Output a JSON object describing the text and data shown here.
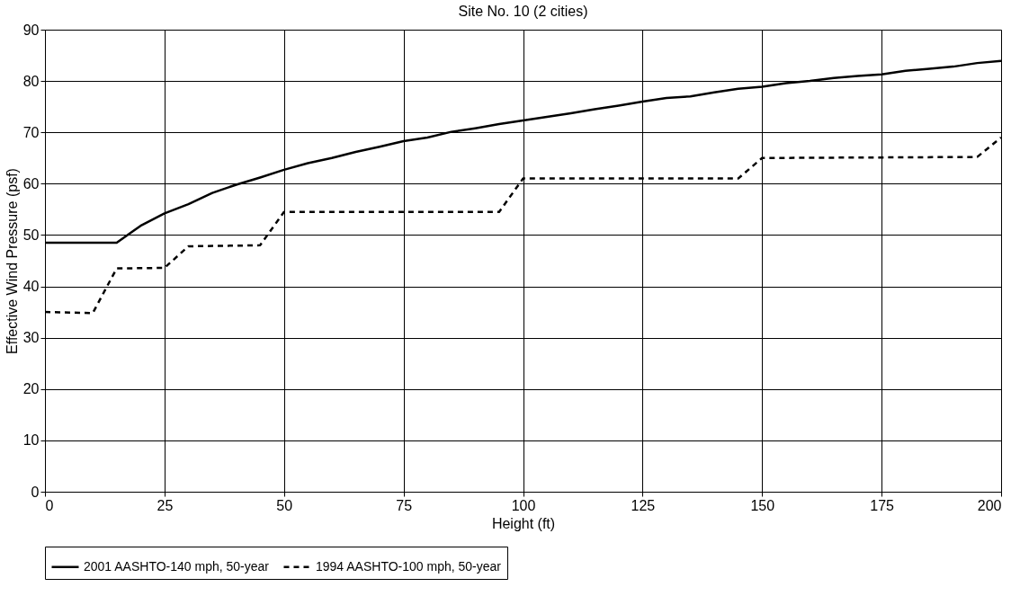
{
  "chart_data": {
    "type": "line",
    "title": "Site No. 10 (2 cities)",
    "xlabel": "Height (ft)",
    "ylabel": "Effective Wind Pressure (psf)",
    "xlim": [
      0,
      200
    ],
    "xticks": [
      0,
      25,
      50,
      75,
      100,
      125,
      150,
      175,
      200
    ],
    "ylim": [
      0,
      90
    ],
    "yticks": [
      0,
      10,
      20,
      30,
      40,
      50,
      60,
      70,
      80,
      90
    ],
    "grid": true,
    "legend": "bottom",
    "marker": "none",
    "series": [
      {
        "name": "2001 AASHTO-140 mph, 50-year",
        "color": "#000000",
        "line_style": "solid",
        "x": [
          0,
          5,
          10,
          15,
          20,
          25,
          30,
          35,
          40,
          45,
          50,
          55,
          60,
          65,
          70,
          75,
          80,
          85,
          90,
          95,
          100,
          105,
          110,
          115,
          120,
          125,
          130,
          135,
          140,
          145,
          150,
          155,
          160,
          165,
          170,
          175,
          180,
          185,
          190,
          195,
          200
        ],
        "values": [
          48.5,
          48.5,
          48.5,
          48.5,
          51.8,
          54.2,
          56,
          58.2,
          59.8,
          61.2,
          62.7,
          64,
          65,
          66.2,
          67.2,
          68.3,
          69,
          70.1,
          70.8,
          71.6,
          72.3,
          73,
          73.7,
          74.5,
          75.2,
          76,
          76.7,
          77,
          77.8,
          78.5,
          78.9,
          79.6,
          80,
          80.6,
          81,
          81.3,
          82,
          82.4,
          82.8,
          83.5,
          83.9
        ]
      },
      {
        "name": "1994 AASHTO-100 mph, 50-year",
        "color": "#000000",
        "line_style": "dashed",
        "x": [
          0,
          10,
          15,
          25,
          30,
          45,
          50,
          95,
          100,
          145,
          150,
          195,
          200
        ],
        "values": [
          35,
          34.8,
          43.5,
          43.6,
          47.8,
          48,
          54.5,
          54.5,
          61,
          61,
          65,
          65.2,
          69
        ]
      }
    ]
  }
}
